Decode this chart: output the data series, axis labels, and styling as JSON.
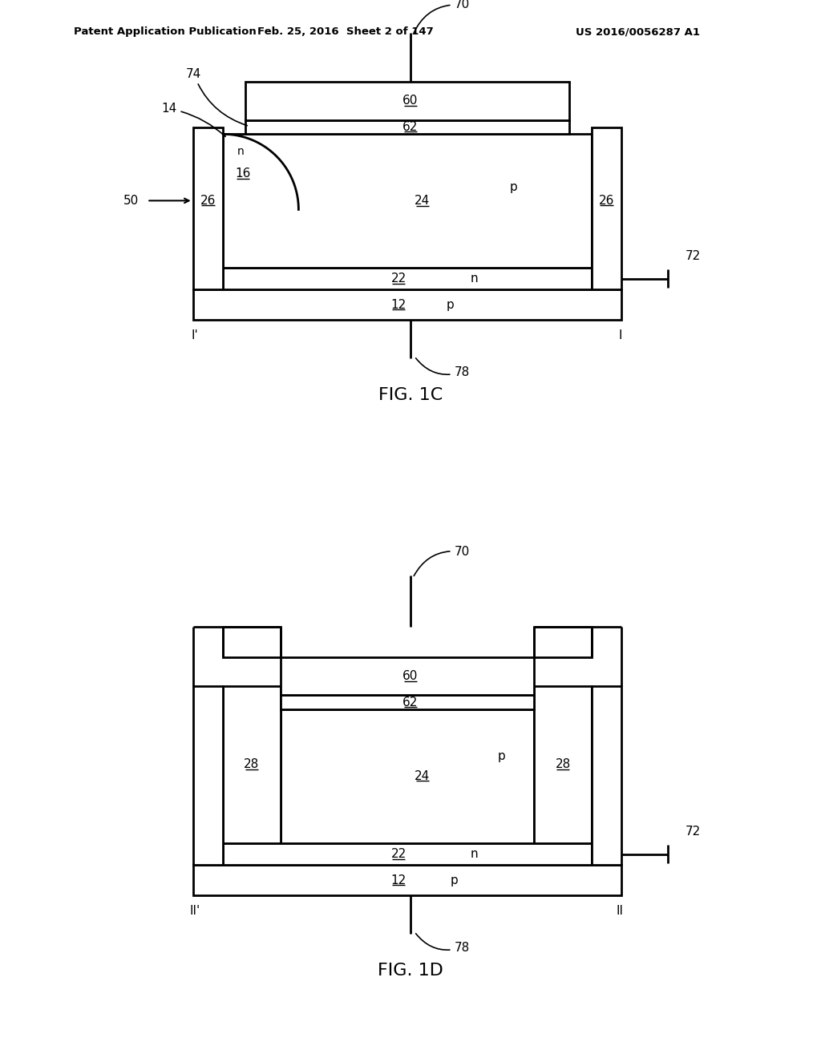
{
  "bg_color": "#ffffff",
  "line_color": "#000000",
  "header_text": "Patent Application Publication",
  "header_date": "Feb. 25, 2016  Sheet 2 of 147",
  "header_patent": "US 2016/0056287 A1",
  "fig1c_title": "FIG. 1C",
  "fig1d_title": "FIG. 1D",
  "lw": 2.0
}
